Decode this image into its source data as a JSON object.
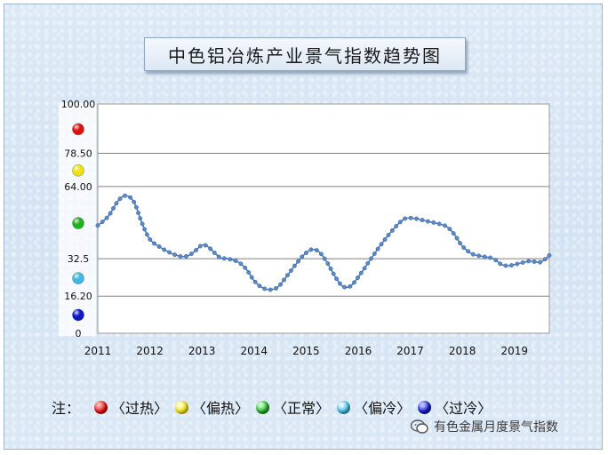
{
  "title": "中色铝冶炼产业景气指数趋势图",
  "legend": {
    "note": "注：",
    "items": [
      {
        "label": "〈过热〉",
        "color": "#e01010"
      },
      {
        "label": "〈偏热〉",
        "color": "#f0e010"
      },
      {
        "label": "〈正常〉",
        "color": "#20b020"
      },
      {
        "label": "〈偏冷〉",
        "color": "#40b8e0"
      },
      {
        "label": "〈过冷〉",
        "color": "#1018c8"
      }
    ]
  },
  "watermark": "有色金属月度景气指数",
  "chart_data": {
    "type": "line",
    "title": "中色铝冶炼产业景气指数趋势图",
    "xlabel": "",
    "ylabel": "",
    "ylim": [
      0,
      100
    ],
    "y_ticks": [
      {
        "value": 0,
        "label": "0"
      },
      {
        "value": 16.2,
        "label": "16.20"
      },
      {
        "value": 32.5,
        "label": "32.5"
      },
      {
        "value": 64,
        "label": "64.00"
      },
      {
        "value": 78.5,
        "label": "78.50"
      },
      {
        "value": 100,
        "label": "100.00"
      }
    ],
    "x_tick_labels": [
      "2011",
      "2012",
      "2013",
      "2014",
      "2015",
      "2016",
      "2017",
      "2018",
      "2019"
    ],
    "x_range": [
      2011,
      2019.67
    ],
    "grid": true,
    "zone_markers": [
      {
        "zone": "过热",
        "value": 89,
        "color": "#e01010"
      },
      {
        "zone": "偏热",
        "value": 71,
        "color": "#f0e010"
      },
      {
        "zone": "正常",
        "value": 48,
        "color": "#20b020"
      },
      {
        "zone": "偏冷",
        "value": 24,
        "color": "#40b8e0"
      },
      {
        "zone": "过冷",
        "value": 8,
        "color": "#1018c8"
      }
    ],
    "series": [
      {
        "color": "#4a78b8",
        "anchors": [
          [
            2011.0,
            47
          ],
          [
            2011.2,
            51
          ],
          [
            2011.4,
            58
          ],
          [
            2011.55,
            60
          ],
          [
            2011.7,
            57
          ],
          [
            2011.85,
            48
          ],
          [
            2012.0,
            41
          ],
          [
            2012.2,
            37.5
          ],
          [
            2012.4,
            35
          ],
          [
            2012.6,
            33.5
          ],
          [
            2012.75,
            34
          ],
          [
            2012.9,
            36.5
          ],
          [
            2013.0,
            38.5
          ],
          [
            2013.1,
            38
          ],
          [
            2013.2,
            36
          ],
          [
            2013.35,
            33
          ],
          [
            2013.5,
            32.5
          ],
          [
            2013.7,
            31
          ],
          [
            2013.85,
            28
          ],
          [
            2014.0,
            23
          ],
          [
            2014.15,
            20
          ],
          [
            2014.3,
            19
          ],
          [
            2014.45,
            20
          ],
          [
            2014.6,
            24
          ],
          [
            2014.8,
            30
          ],
          [
            2014.95,
            34
          ],
          [
            2015.1,
            36.5
          ],
          [
            2015.25,
            35.5
          ],
          [
            2015.4,
            31
          ],
          [
            2015.55,
            25
          ],
          [
            2015.7,
            20.5
          ],
          [
            2015.85,
            20.5
          ],
          [
            2016.0,
            24.5
          ],
          [
            2016.2,
            31
          ],
          [
            2016.45,
            39
          ],
          [
            2016.7,
            46
          ],
          [
            2016.9,
            50
          ],
          [
            2017.1,
            50
          ],
          [
            2017.3,
            49
          ],
          [
            2017.5,
            48
          ],
          [
            2017.7,
            46.5
          ],
          [
            2017.85,
            43
          ],
          [
            2018.0,
            38
          ],
          [
            2018.2,
            34.5
          ],
          [
            2018.4,
            33.5
          ],
          [
            2018.6,
            32.5
          ],
          [
            2018.75,
            30
          ],
          [
            2018.9,
            29.5
          ],
          [
            2019.1,
            30.5
          ],
          [
            2019.3,
            31.5
          ],
          [
            2019.5,
            31
          ],
          [
            2019.67,
            34
          ]
        ]
      }
    ]
  }
}
